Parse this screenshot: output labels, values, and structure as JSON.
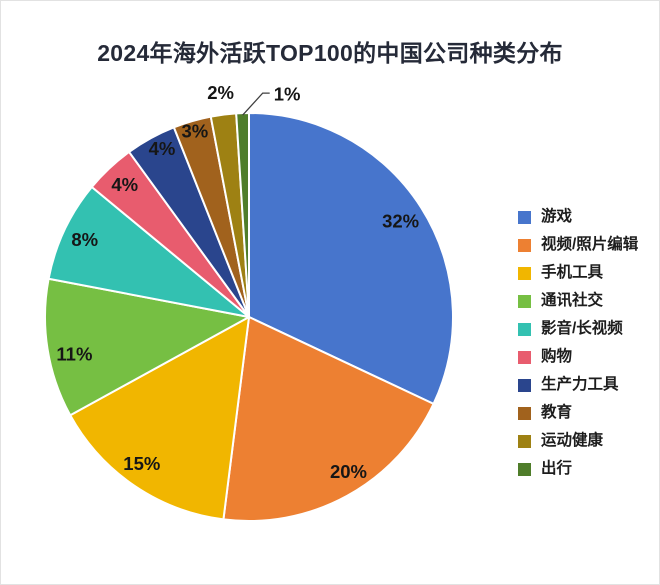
{
  "page": {
    "background_color": "#ffffff",
    "border_color": "#e2e2e2"
  },
  "title": "2024年海外活跃TOP100的中国公司种类分布",
  "chart_data": {
    "type": "pie",
    "title": "2024年海外活跃TOP100的中国公司种类分布",
    "unit": "percent",
    "direction": "clockwise",
    "start_angle_deg": 0,
    "legend_position": "right",
    "grid": false,
    "categories": [
      "游戏",
      "视频/照片编辑",
      "手机工具",
      "通讯社交",
      "影音/长视频",
      "购物",
      "生产力工具",
      "教育",
      "运动健康",
      "出行"
    ],
    "values": [
      32,
      20,
      15,
      11,
      8,
      4,
      4,
      3,
      2,
      1
    ],
    "slices": [
      {
        "label": "游戏",
        "value": 32,
        "pct_label": "32%",
        "color": "#4775CC",
        "label_r_frac": 0.88,
        "label_angle_offset_deg": 0,
        "outside": false,
        "leader": false
      },
      {
        "label": "视频/照片编辑",
        "value": 20,
        "pct_label": "20%",
        "color": "#ED8032",
        "label_r_frac": 0.9,
        "label_angle_offset_deg": -4,
        "outside": false,
        "leader": false
      },
      {
        "label": "手机工具",
        "value": 15,
        "pct_label": "15%",
        "color": "#F1B600",
        "label_r_frac": 0.89,
        "label_angle_offset_deg": 2,
        "outside": false,
        "leader": false
      },
      {
        "label": "通讯社交",
        "value": 11,
        "pct_label": "11%",
        "color": "#76BF43",
        "label_r_frac": 0.875,
        "label_angle_offset_deg": -3,
        "outside": false,
        "leader": false
      },
      {
        "label": "影音/长视频",
        "value": 8,
        "pct_label": "8%",
        "color": "#33C1B1",
        "label_r_frac": 0.89,
        "label_angle_offset_deg": 0,
        "outside": false,
        "leader": false
      },
      {
        "label": "购物",
        "value": 4,
        "pct_label": "4%",
        "color": "#E85C6E",
        "label_r_frac": 0.89,
        "label_angle_offset_deg": 0,
        "outside": false,
        "leader": false
      },
      {
        "label": "生产力工具",
        "value": 4,
        "pct_label": "4%",
        "color": "#2A458D",
        "label_r_frac": 0.93,
        "label_angle_offset_deg": 1.5,
        "outside": false,
        "leader": false
      },
      {
        "label": "教育",
        "value": 3,
        "pct_label": "3%",
        "color": "#A1621D",
        "label_r_frac": 0.95,
        "label_angle_offset_deg": 0,
        "outside": false,
        "leader": false
      },
      {
        "label": "运动健康",
        "value": 2,
        "pct_label": "2%",
        "color": "#9E8113",
        "label_r_frac": 1.11,
        "label_angle_offset_deg": 0,
        "outside": true,
        "leader": false
      },
      {
        "label": "出行",
        "value": 1,
        "pct_label": "1%",
        "color": "#4F7D2A",
        "label_r_frac": 1.0,
        "label_angle_offset_deg": 0,
        "outside": true,
        "leader": true
      }
    ],
    "label_text_color": "#161616",
    "slice_border_color": "#ffffff",
    "leader_line_color": "#3f3f3f"
  }
}
